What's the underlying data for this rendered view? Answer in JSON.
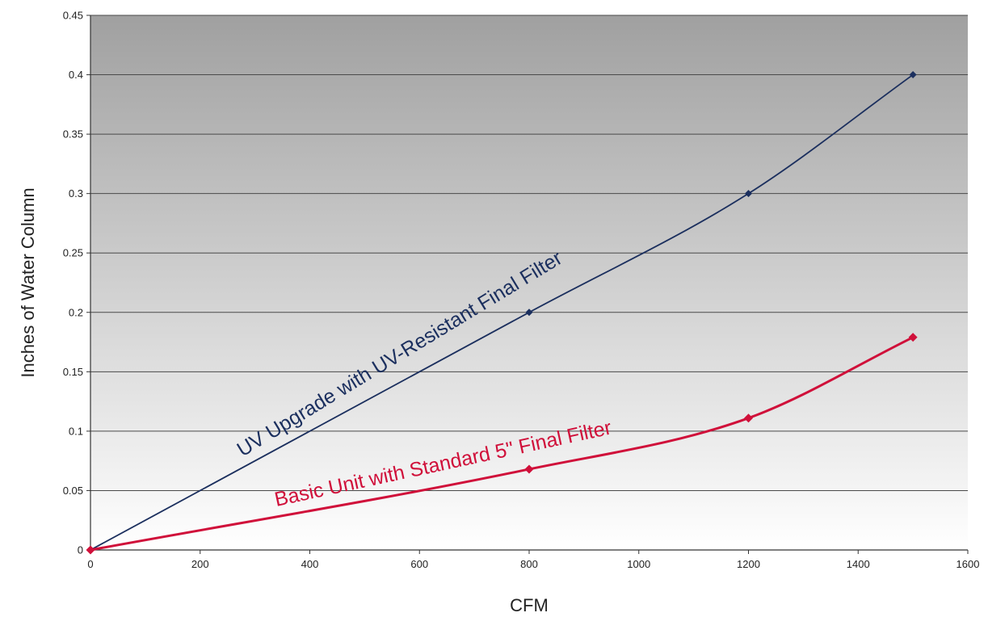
{
  "chart_data": {
    "type": "line",
    "title": "",
    "xlabel": "CFM",
    "ylabel": "Inches of Water Column",
    "xlim": [
      0,
      1600
    ],
    "ylim": [
      0,
      0.45
    ],
    "x_ticks": [
      0,
      200,
      400,
      600,
      800,
      1000,
      1200,
      1400,
      1600
    ],
    "y_ticks": [
      0,
      0.05,
      0.1,
      0.15,
      0.2,
      0.25,
      0.3,
      0.35,
      0.4,
      0.45
    ],
    "grid": "horizontal",
    "legend": "none",
    "background": "gray-gradient",
    "series": [
      {
        "name": "UV Upgrade with UV-Resistant Final Filter",
        "color": "#1b2f5e",
        "x": [
          0,
          800,
          1200,
          1500
        ],
        "y": [
          0,
          0.2,
          0.3,
          0.4
        ]
      },
      {
        "name": "Basic Unit with Standard 5\" Final Filter",
        "color": "#d0103a",
        "x": [
          0,
          800,
          1200,
          1500
        ],
        "y": [
          0,
          0.068,
          0.111,
          0.179
        ]
      }
    ]
  }
}
